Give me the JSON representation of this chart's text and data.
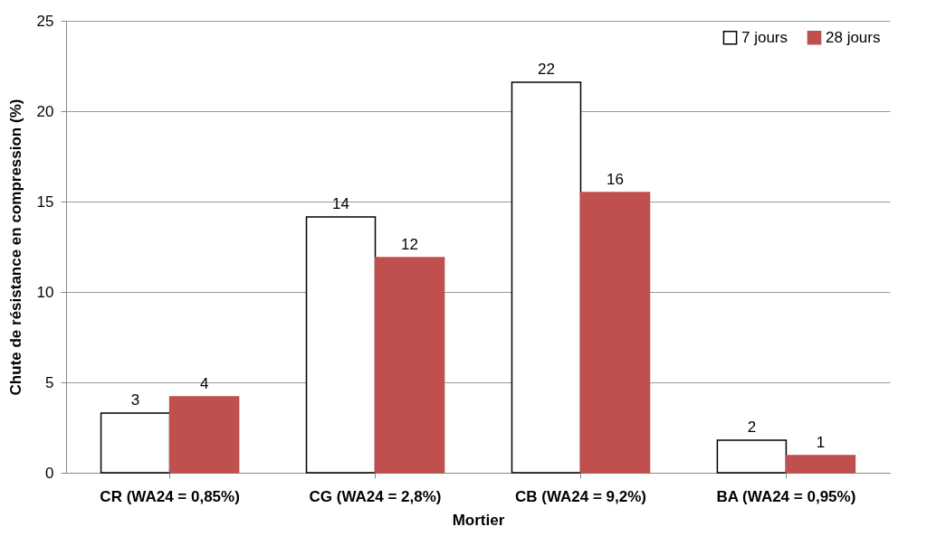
{
  "chart_data": {
    "type": "bar",
    "xlabel": "Mortier",
    "ylabel": "Chute de résistance en compression (%)",
    "categories": [
      "CR (WA24 = 0,85%)",
      "CG (WA24 = 2,8%)",
      "CB (WA24 = 9,2%)",
      "BA (WA24 = 0,95%)"
    ],
    "series": [
      {
        "name": "7 jours",
        "color": "#ffffff",
        "values": [
          3.3,
          14.15,
          21.6,
          1.8
        ],
        "value_labels": [
          "3",
          "14",
          "22",
          "2"
        ]
      },
      {
        "name": "28 jours",
        "color": "#c0504d",
        "values": [
          4.2,
          11.9,
          15.5,
          0.95
        ],
        "value_labels": [
          "4",
          "12",
          "16",
          "1"
        ]
      }
    ],
    "ylim": [
      0,
      25
    ],
    "yticks": [
      0,
      5,
      10,
      15,
      20,
      25
    ],
    "grid": "y",
    "legend": "top right"
  }
}
